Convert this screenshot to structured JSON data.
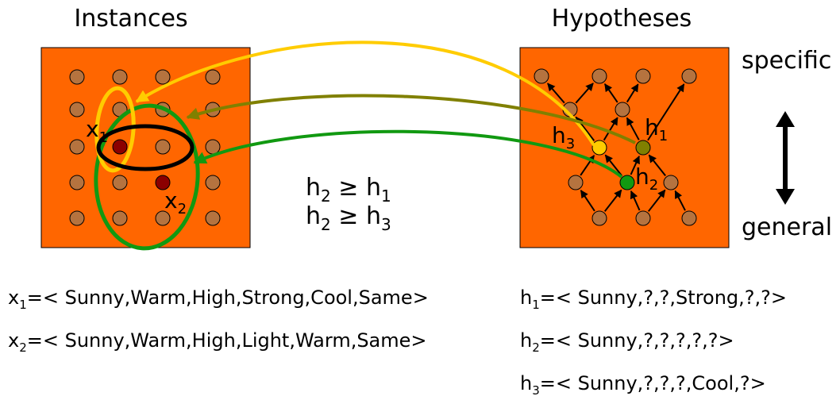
{
  "instances": {
    "title": "Instances",
    "x1": {
      "sym": "x",
      "sub": "1"
    },
    "x2": {
      "sym": "x",
      "sub": "2"
    }
  },
  "hypotheses": {
    "title": "Hypotheses",
    "h1": {
      "sym": "h",
      "sub": "1"
    },
    "h2": {
      "sym": "h",
      "sub": "2"
    },
    "h3": {
      "sym": "h",
      "sub": "3"
    }
  },
  "scale": {
    "top": "specific",
    "bottom": "general"
  },
  "relations": [
    {
      "left": "h",
      "left_sub": "2",
      "op": " ≥ ",
      "right": "h",
      "right_sub": "1"
    },
    {
      "left": "h",
      "left_sub": "2",
      "op": " ≥ ",
      "right": "h",
      "right_sub": "3"
    }
  ],
  "instance_defs": [
    {
      "sym": "x",
      "sub": "1",
      "text": "=< Sunny,Warm,High,Strong,Cool,Same>"
    },
    {
      "sym": "x",
      "sub": "2",
      "text": "=< Sunny,Warm,High,Light,Warm,Same>"
    }
  ],
  "hypothesis_defs": [
    {
      "sym": "h",
      "sub": "1",
      "text": "=< Sunny,?,?,Strong,?,?>"
    },
    {
      "sym": "h",
      "sub": "2",
      "text": "=< Sunny,?,?,?,?,?>"
    },
    {
      "sym": "h",
      "sub": "3",
      "text": "=< Sunny,?,?,?,Cool,?>"
    }
  ],
  "colors": {
    "box": "#ff6600",
    "dot": "#b5733f",
    "highlight_dot": "#8b0000",
    "h1": "#808000",
    "h2": "#119911",
    "h3": "#ffcc00",
    "ring": "#000000"
  }
}
